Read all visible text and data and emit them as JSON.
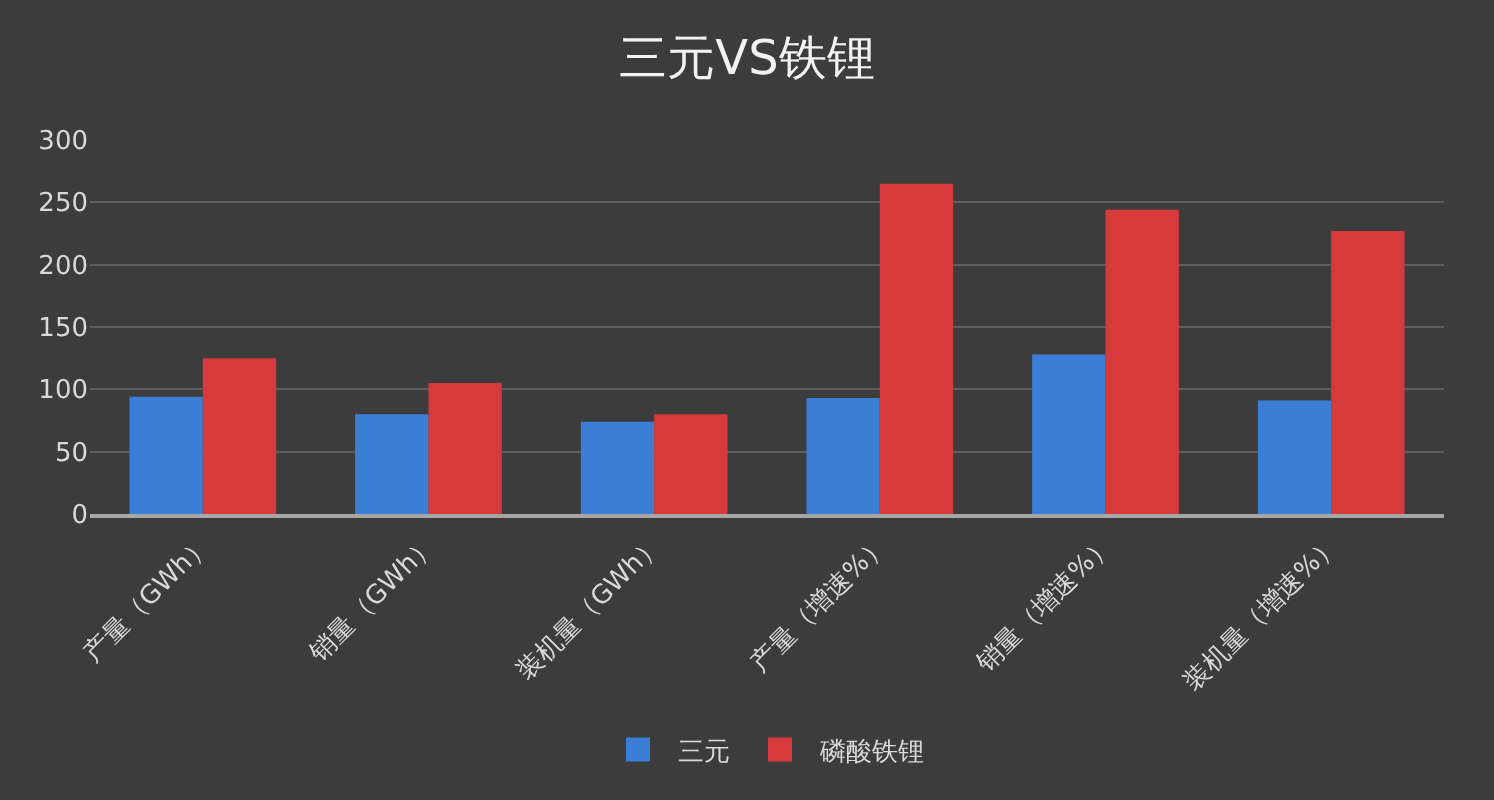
{
  "chart_data": {
    "type": "bar",
    "title": "三元VS铁锂",
    "categories": [
      "产量（GWh）",
      "销量（GWh）",
      "装机量（GWh）",
      "产量（增速%）",
      "销量（增速%）",
      "装机量（增速%）"
    ],
    "series": [
      {
        "name": "三元",
        "color": "#3a7fd5",
        "values": [
          94,
          80,
          74,
          93,
          128,
          91
        ]
      },
      {
        "name": "磷酸铁锂",
        "color": "#d63a3a",
        "values": [
          125,
          105,
          80,
          265,
          244,
          227
        ]
      }
    ],
    "ylim": [
      0,
      300
    ],
    "yticks": [
      0,
      50,
      100,
      150,
      200,
      250,
      300
    ],
    "grid": "y",
    "legend": "bottom"
  }
}
